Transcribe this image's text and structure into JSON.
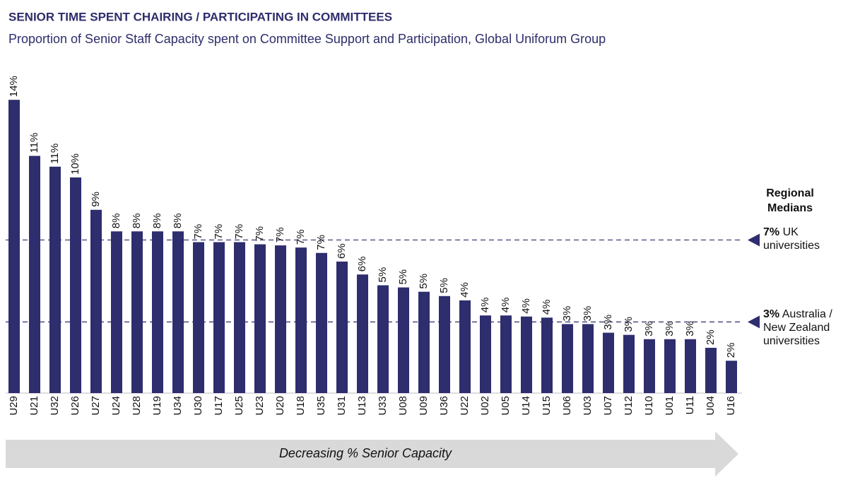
{
  "chart_data": {
    "type": "bar",
    "title": "SENIOR TIME SPENT CHAIRING / PARTICIPATING IN COMMITTEES",
    "subtitle": "Proportion of Senior Staff Capacity spent on Committee Support and Participation, Global Uniforum Group",
    "categories": [
      "U29",
      "U21",
      "U32",
      "U26",
      "U27",
      "U24",
      "U28",
      "U19",
      "U34",
      "U30",
      "U17",
      "U25",
      "U23",
      "U20",
      "U18",
      "U35",
      "U31",
      "U13",
      "U33",
      "U08",
      "U09",
      "U36",
      "U22",
      "U02",
      "U05",
      "U14",
      "U15",
      "U06",
      "U03",
      "U07",
      "U12",
      "U10",
      "U01",
      "U11",
      "U04",
      "U16"
    ],
    "values": [
      13.6,
      11,
      10.5,
      10,
      8.5,
      7.5,
      7.5,
      7.5,
      7.5,
      7,
      7,
      7,
      6.9,
      6.85,
      6.75,
      6.5,
      6.1,
      5.5,
      5,
      4.9,
      4.7,
      4.5,
      4.3,
      3.6,
      3.6,
      3.55,
      3.5,
      3.2,
      3.2,
      2.8,
      2.7,
      2.5,
      2.5,
      2.5,
      2.1,
      1.5
    ],
    "value_labels": [
      "14%",
      "11%",
      "11%",
      "10%",
      "9%",
      "8%",
      "8%",
      "8%",
      "8%",
      "7%",
      "7%",
      "7%",
      "7%",
      "7%",
      "7%",
      "7%",
      "6%",
      "6%",
      "5%",
      "5%",
      "5%",
      "5%",
      "4%",
      "4%",
      "4%",
      "4%",
      "4%",
      "3%",
      "3%",
      "3%",
      "3%",
      "3%",
      "3%",
      "3%",
      "2%",
      "2%"
    ],
    "color": "#2e2d6e",
    "ylim": [
      0,
      15
    ],
    "reference_title": "Regional Medians",
    "reference_lines": [
      {
        "value": 7.1,
        "label": "7%",
        "text": "UK universities"
      },
      {
        "value": 3.3,
        "label": "3%",
        "text": "Australia / New Zealand universities"
      }
    ],
    "annotation": "Decreasing % Senior Capacity"
  }
}
